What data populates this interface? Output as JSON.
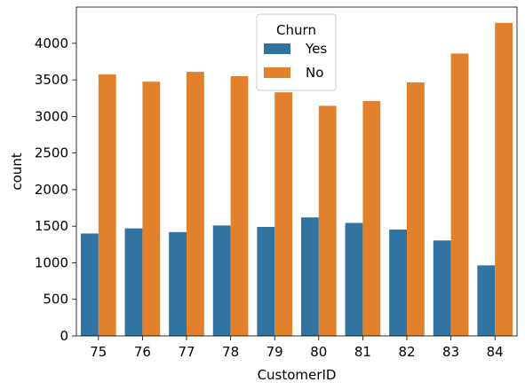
{
  "chart_data": {
    "type": "bar",
    "xlabel": "CustomerID",
    "ylabel": "count",
    "categories": [
      "75",
      "76",
      "77",
      "78",
      "79",
      "80",
      "81",
      "82",
      "83",
      "84"
    ],
    "series": [
      {
        "name": "Yes",
        "color": "#3274a1",
        "values": [
          1400,
          1470,
          1420,
          1510,
          1490,
          1620,
          1545,
          1455,
          1305,
          965
        ]
      },
      {
        "name": "No",
        "color": "#e1812c",
        "values": [
          3575,
          3475,
          3610,
          3550,
          3330,
          3145,
          3210,
          3465,
          3860,
          4280
        ]
      }
    ],
    "yticks": [
      0,
      500,
      1000,
      1500,
      2000,
      2500,
      3000,
      3500,
      4000
    ],
    "ylim": [
      0,
      4495
    ],
    "legend": {
      "title": "Churn",
      "placement": "top-center"
    }
  }
}
